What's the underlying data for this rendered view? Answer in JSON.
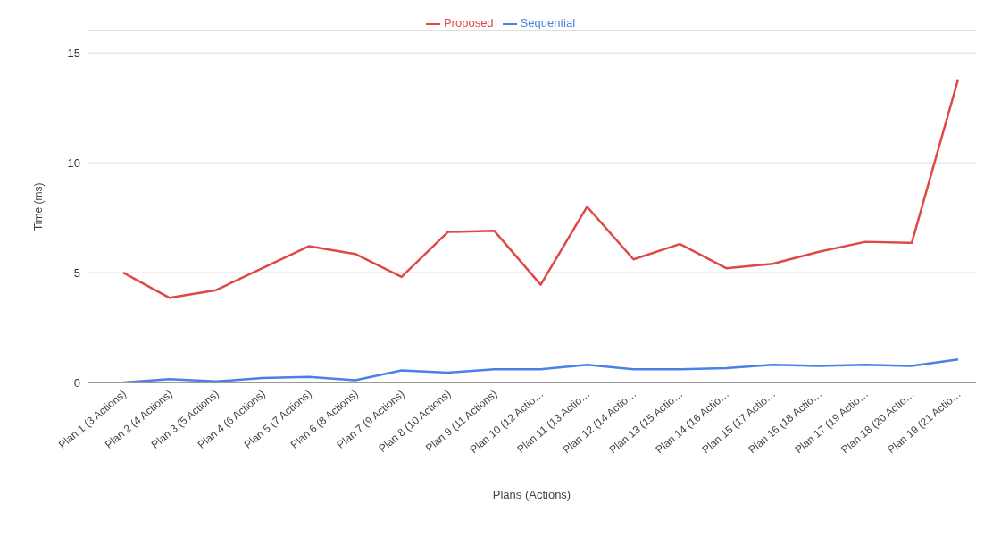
{
  "chart_data": {
    "type": "line",
    "xlabel": "Plans (Actions)",
    "ylabel": "Time (ms)",
    "categories": [
      "Plan 1 (3 Actions)",
      "Plan 2 (4 Actions)",
      "Plan 3 (5 Actions)",
      "Plan 4 (6 Actions)",
      "Plan 5 (7 Actions)",
      "Plan 6 (8 Actions)",
      "Plan 7 (9 Actions)",
      "Plan 8 (10 Actions)",
      "Plan 9 (11 Actions)",
      "Plan 10 (12 Actio…",
      "Plan 11 (13 Actio…",
      "Plan 12 (14 Actio…",
      "Plan 13 (15 Actio…",
      "Plan 14 (16 Actio…",
      "Plan 15 (17 Actio…",
      "Plan 16 (18 Actio…",
      "Plan 17 (19 Actio…",
      "Plan 18 (20 Actio…",
      "Plan 19 (21 Actio…"
    ],
    "series": [
      {
        "name": "Sequential",
        "color": "#4a80e8",
        "values": [
          0,
          0.15,
          0.05,
          0.2,
          0.25,
          0.1,
          0.55,
          0.45,
          0.6,
          0.6,
          0.8,
          0.6,
          0.6,
          0.65,
          0.8,
          0.75,
          0.8,
          0.75,
          1.05
        ]
      },
      {
        "name": "Proposed",
        "color": "#e04848",
        "values": [
          5.0,
          3.85,
          4.2,
          5.2,
          6.2,
          5.85,
          4.8,
          6.85,
          6.9,
          4.45,
          8.0,
          5.6,
          6.3,
          5.2,
          5.4,
          5.95,
          6.4,
          6.35,
          13.8
        ]
      }
    ],
    "ylim": [
      0,
      16
    ],
    "yticks": [
      0,
      5,
      10,
      15
    ],
    "grid": "y",
    "legend": "top",
    "marker": "none",
    "line_style": "solid"
  }
}
